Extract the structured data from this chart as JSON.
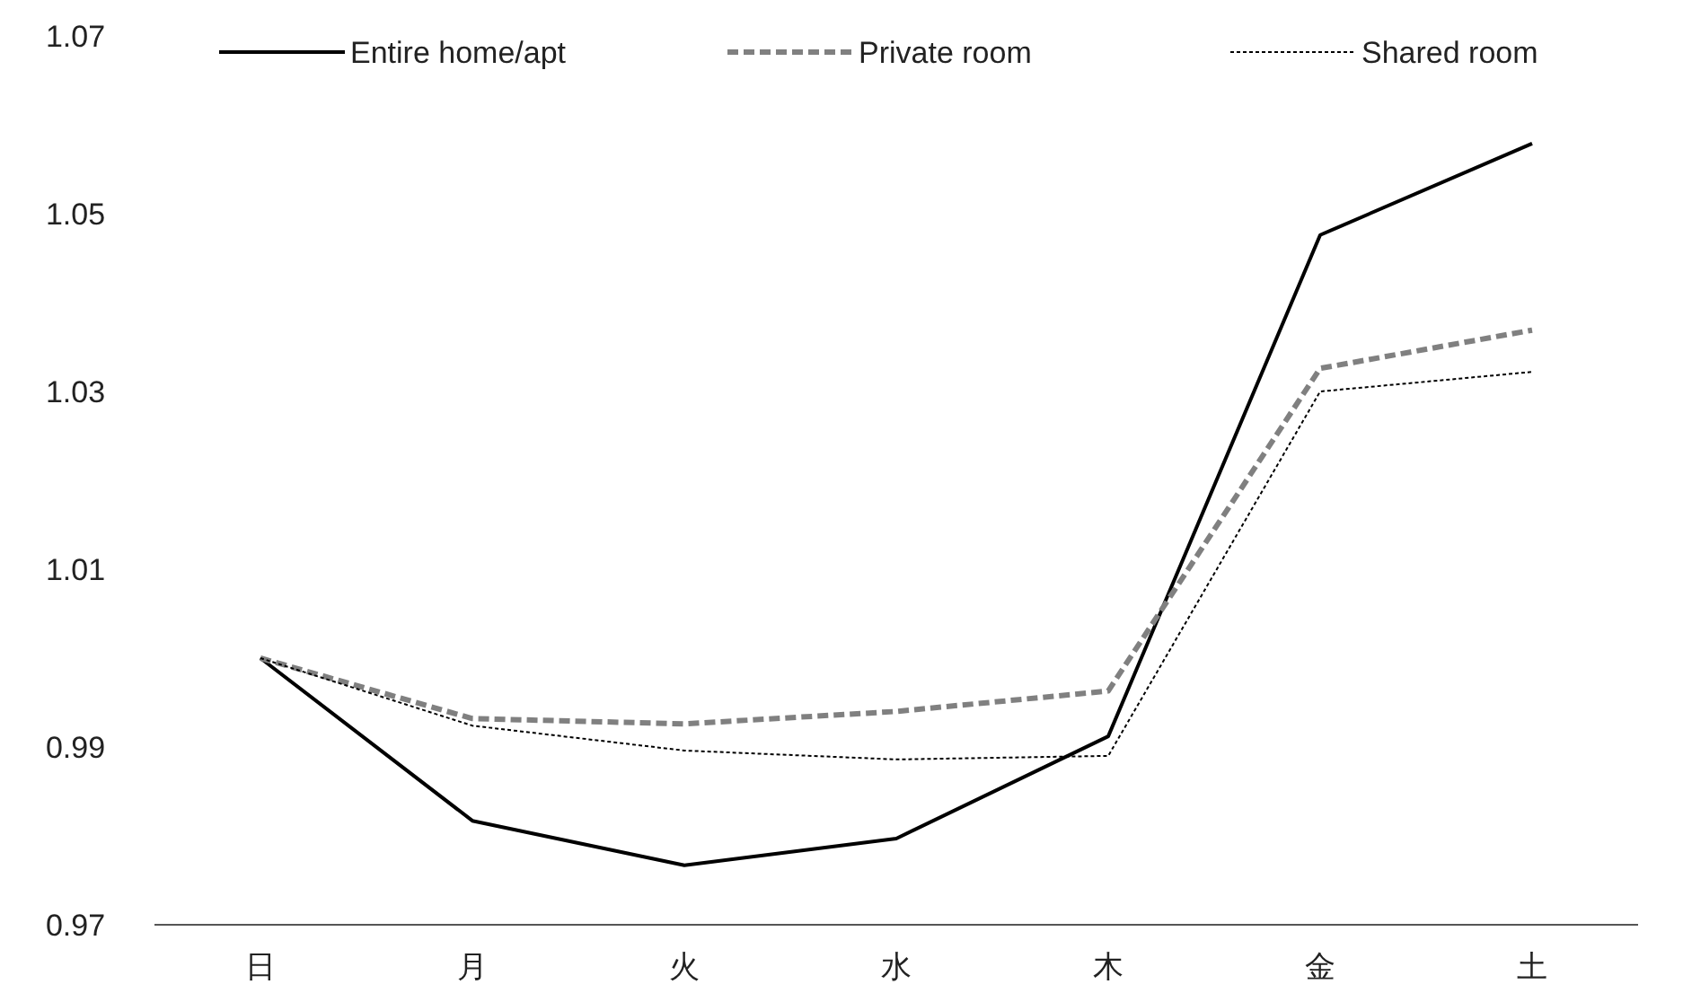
{
  "chart_data": {
    "type": "line",
    "categories": [
      "日",
      "月",
      "火",
      "水",
      "木",
      "金",
      "土"
    ],
    "ylim": [
      0.97,
      1.07
    ],
    "yticks": [
      0.97,
      0.99,
      1.01,
      1.03,
      1.05,
      1.07
    ],
    "grid": false,
    "legend": "top",
    "marker": "none",
    "series": [
      {
        "name": "Entire home/apt",
        "color": "#000000",
        "line_style": "solid",
        "values": [
          1.0,
          0.9817,
          0.9767,
          0.9797,
          0.9912,
          1.0476,
          1.0579
        ]
      },
      {
        "name": "Private room",
        "color": "#808080",
        "line_style": "dashed",
        "values": [
          1.0,
          0.9932,
          0.9926,
          0.994,
          0.9963,
          1.0326,
          1.0369
        ]
      },
      {
        "name": "Shared room",
        "color": "#000000",
        "line_style": "dotted",
        "values": [
          1.0,
          0.9924,
          0.9896,
          0.9886,
          0.989,
          1.03,
          1.0322
        ]
      }
    ]
  }
}
